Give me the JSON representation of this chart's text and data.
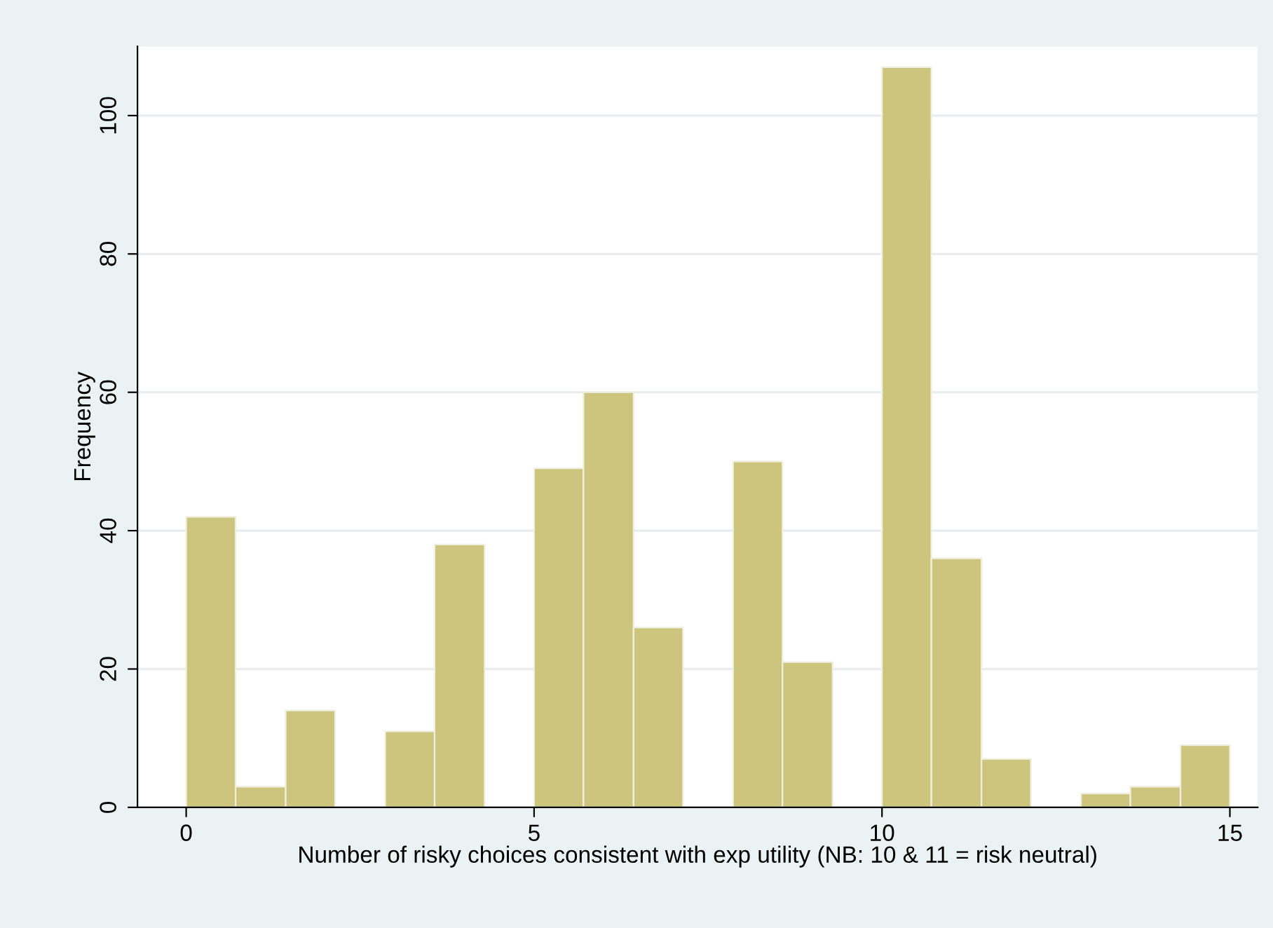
{
  "chart_data": {
    "type": "histogram",
    "xlabel": "Number of risky choices consistent with exp utility (NB: 10 & 11 = risk neutral)",
    "ylabel": "Frequency",
    "bins": [
      0,
      0.71,
      1.43,
      2.14,
      2.86,
      3.57,
      4.29,
      5,
      5.71,
      6.43,
      7.14,
      7.86,
      8.57,
      9.29,
      10,
      10.71,
      11.43,
      12.14,
      12.86,
      13.57,
      14.29,
      15
    ],
    "values": [
      42,
      3,
      14,
      0,
      11,
      38,
      0,
      49,
      60,
      26,
      0,
      50,
      21,
      0,
      107,
      36,
      7,
      0,
      2,
      3,
      9
    ],
    "color": "#cdc47e",
    "xlim": [
      -0.7,
      15.4
    ],
    "xticks": [
      0,
      5,
      10,
      15
    ],
    "ylim": [
      0,
      110
    ],
    "yticks": [
      0,
      20,
      40,
      60,
      80,
      100
    ],
    "grid": "y",
    "legend": false
  }
}
